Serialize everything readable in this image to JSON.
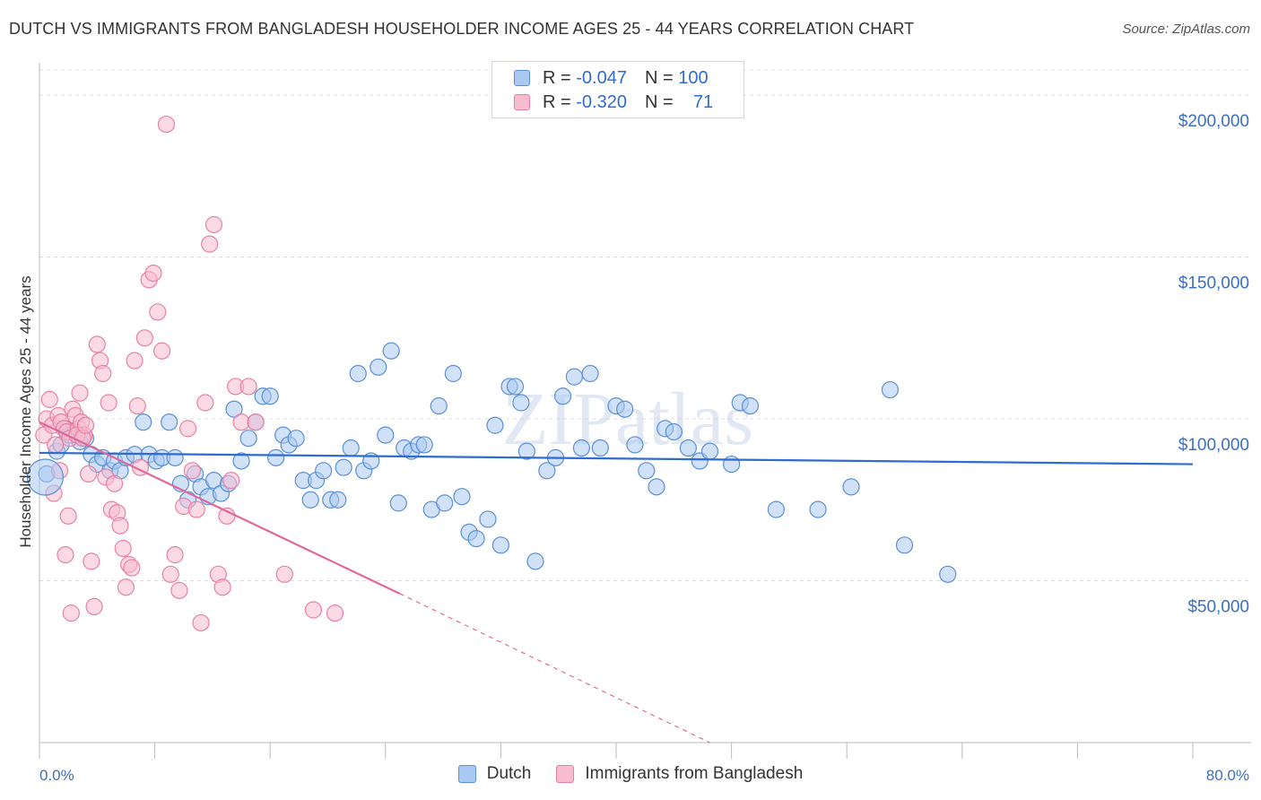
{
  "title": "DUTCH VS IMMIGRANTS FROM BANGLADESH HOUSEHOLDER INCOME AGES 25 - 44 YEARS CORRELATION CHART",
  "source": "Source: ZipAtlas.com",
  "watermark": "ZIPatlas",
  "colors": {
    "dutch_fill": "#a9c8f2",
    "dutch_stroke": "#5b8fd6",
    "dutch_line": "#2f6bd0",
    "bangla_fill": "#f7bcd0",
    "bangla_stroke": "#e8819f",
    "bangla_line": "#e0689a",
    "grid": "#dddddd",
    "axis_text": "#3a6fc4"
  },
  "legend": {
    "rows": [
      {
        "r_label": "R =",
        "r_value": "-0.047",
        "n_label": "N =",
        "n_value": "100"
      },
      {
        "r_label": "R =",
        "r_value": "-0.320",
        "n_label": "N =",
        "n_value": "71"
      }
    ]
  },
  "chart_data": {
    "type": "scatter",
    "title": "DUTCH VS IMMIGRANTS FROM BANGLADESH HOUSEHOLDER INCOME AGES 25 - 44 YEARS CORRELATION CHART",
    "xlabel": "",
    "ylabel": "Householder Income Ages 25 - 44 years",
    "xlim": [
      0,
      80
    ],
    "ylim": [
      0,
      210000
    ],
    "x_tick_labels": [
      "0.0%",
      "80.0%"
    ],
    "y_ticks": [
      50000,
      100000,
      150000,
      200000
    ],
    "y_tick_labels": [
      "$50,000",
      "$100,000",
      "$150,000",
      "$200,000"
    ],
    "grid": true,
    "legend_position": "top-center",
    "series": [
      {
        "name": "Dutch",
        "trend": {
          "x0": 0,
          "y0": 89500,
          "x1": 80,
          "y1": 86000
        },
        "points": [
          [
            0.5,
            83000
          ],
          [
            1.2,
            90000
          ],
          [
            1.5,
            92000
          ],
          [
            1.8,
            97000
          ],
          [
            2.1,
            95000
          ],
          [
            2.5,
            96000
          ],
          [
            2.8,
            93000
          ],
          [
            3.2,
            94000
          ],
          [
            3.6,
            89000
          ],
          [
            4.0,
            86000
          ],
          [
            4.4,
            88000
          ],
          [
            4.9,
            84000
          ],
          [
            5.2,
            87000
          ],
          [
            5.6,
            84000
          ],
          [
            6.0,
            88000
          ],
          [
            6.6,
            89000
          ],
          [
            7.2,
            99000
          ],
          [
            7.6,
            89000
          ],
          [
            8.1,
            87000
          ],
          [
            8.5,
            88000
          ],
          [
            9.0,
            99000
          ],
          [
            9.4,
            88000
          ],
          [
            9.8,
            80000
          ],
          [
            10.3,
            75000
          ],
          [
            10.8,
            83000
          ],
          [
            11.2,
            79000
          ],
          [
            11.7,
            76000
          ],
          [
            12.1,
            81000
          ],
          [
            12.6,
            77000
          ],
          [
            13.1,
            80000
          ],
          [
            13.5,
            103000
          ],
          [
            14.0,
            87000
          ],
          [
            14.5,
            94000
          ],
          [
            15.0,
            99000
          ],
          [
            15.5,
            107000
          ],
          [
            16.0,
            107000
          ],
          [
            16.4,
            88000
          ],
          [
            16.9,
            95000
          ],
          [
            17.3,
            92000
          ],
          [
            17.8,
            94000
          ],
          [
            18.3,
            81000
          ],
          [
            18.8,
            75000
          ],
          [
            19.2,
            81000
          ],
          [
            19.7,
            84000
          ],
          [
            20.2,
            75000
          ],
          [
            20.7,
            75000
          ],
          [
            21.1,
            85000
          ],
          [
            21.6,
            91000
          ],
          [
            22.1,
            114000
          ],
          [
            22.5,
            84000
          ],
          [
            23.0,
            87000
          ],
          [
            23.5,
            116000
          ],
          [
            24.0,
            95000
          ],
          [
            24.4,
            121000
          ],
          [
            24.9,
            74000
          ],
          [
            25.3,
            91000
          ],
          [
            25.8,
            90000
          ],
          [
            26.3,
            92000
          ],
          [
            26.7,
            92000
          ],
          [
            27.2,
            72000
          ],
          [
            27.7,
            104000
          ],
          [
            28.1,
            74000
          ],
          [
            28.7,
            114000
          ],
          [
            29.3,
            76000
          ],
          [
            29.8,
            65000
          ],
          [
            30.3,
            63000
          ],
          [
            31.1,
            69000
          ],
          [
            31.6,
            98000
          ],
          [
            32.0,
            61000
          ],
          [
            32.6,
            110000
          ],
          [
            33.0,
            110000
          ],
          [
            33.4,
            105000
          ],
          [
            33.8,
            90000
          ],
          [
            34.4,
            56000
          ],
          [
            35.2,
            84000
          ],
          [
            35.8,
            88000
          ],
          [
            36.3,
            107000
          ],
          [
            37.1,
            113000
          ],
          [
            37.6,
            91000
          ],
          [
            38.2,
            114000
          ],
          [
            38.9,
            91000
          ],
          [
            40.0,
            104000
          ],
          [
            40.6,
            103000
          ],
          [
            41.3,
            92000
          ],
          [
            42.1,
            84000
          ],
          [
            42.8,
            79000
          ],
          [
            43.4,
            97000
          ],
          [
            44.0,
            96000
          ],
          [
            45.0,
            91000
          ],
          [
            45.8,
            87000
          ],
          [
            46.5,
            90000
          ],
          [
            48.0,
            86000
          ],
          [
            48.6,
            105000
          ],
          [
            49.3,
            104000
          ],
          [
            51.1,
            72000
          ],
          [
            54.0,
            72000
          ],
          [
            56.3,
            79000
          ],
          [
            59.0,
            109000
          ],
          [
            60.0,
            61000
          ],
          [
            63.0,
            52000
          ]
        ]
      },
      {
        "name": "Immigrants from Bangladesh",
        "trend": {
          "x0": 0,
          "y0": 99000,
          "x1": 25,
          "y1": 46000
        },
        "trend_dashed": {
          "x0": 25,
          "y0": 46000,
          "x1": 46.5,
          "y1": 0
        },
        "points": [
          [
            0.3,
            95000
          ],
          [
            0.5,
            100000
          ],
          [
            0.7,
            106000
          ],
          [
            0.9,
            98000
          ],
          [
            1.1,
            92000
          ],
          [
            1.3,
            101000
          ],
          [
            1.5,
            99000
          ],
          [
            1.7,
            97000
          ],
          [
            1.9,
            96000
          ],
          [
            2.1,
            94000
          ],
          [
            2.3,
            103000
          ],
          [
            2.5,
            101000
          ],
          [
            2.7,
            97000
          ],
          [
            2.9,
            99000
          ],
          [
            3.1,
            95000
          ],
          [
            1.0,
            77000
          ],
          [
            1.4,
            84000
          ],
          [
            1.8,
            58000
          ],
          [
            2.0,
            70000
          ],
          [
            2.2,
            40000
          ],
          [
            2.6,
            95000
          ],
          [
            2.8,
            108000
          ],
          [
            3.0,
            94000
          ],
          [
            3.2,
            98000
          ],
          [
            3.4,
            83000
          ],
          [
            3.6,
            56000
          ],
          [
            3.8,
            42000
          ],
          [
            4.0,
            123000
          ],
          [
            4.2,
            118000
          ],
          [
            4.4,
            114000
          ],
          [
            4.6,
            82000
          ],
          [
            4.8,
            105000
          ],
          [
            5.0,
            72000
          ],
          [
            5.2,
            80000
          ],
          [
            5.4,
            71000
          ],
          [
            5.6,
            67000
          ],
          [
            5.8,
            60000
          ],
          [
            6.0,
            48000
          ],
          [
            6.2,
            55000
          ],
          [
            6.4,
            54000
          ],
          [
            6.6,
            118000
          ],
          [
            6.8,
            104000
          ],
          [
            7.0,
            85000
          ],
          [
            7.3,
            125000
          ],
          [
            7.6,
            143000
          ],
          [
            7.9,
            145000
          ],
          [
            8.2,
            133000
          ],
          [
            8.5,
            121000
          ],
          [
            8.8,
            191000
          ],
          [
            9.1,
            52000
          ],
          [
            9.4,
            58000
          ],
          [
            9.7,
            47000
          ],
          [
            10.0,
            73000
          ],
          [
            10.3,
            97000
          ],
          [
            10.6,
            84000
          ],
          [
            10.9,
            72000
          ],
          [
            11.2,
            37000
          ],
          [
            11.5,
            105000
          ],
          [
            11.8,
            154000
          ],
          [
            12.1,
            160000
          ],
          [
            12.4,
            52000
          ],
          [
            12.7,
            48000
          ],
          [
            13.0,
            70000
          ],
          [
            13.3,
            81000
          ],
          [
            13.6,
            110000
          ],
          [
            14.0,
            99000
          ],
          [
            14.5,
            110000
          ],
          [
            15.0,
            99000
          ],
          [
            17.0,
            52000
          ],
          [
            19.0,
            41000
          ],
          [
            20.5,
            40000
          ]
        ]
      }
    ]
  }
}
